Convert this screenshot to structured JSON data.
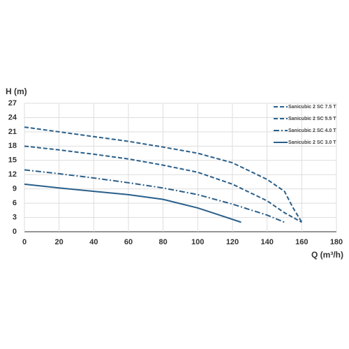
{
  "chart_data": {
    "type": "line",
    "x_label": "Q (m³/h)",
    "y_label": "H (m)",
    "xlim": [
      0,
      180
    ],
    "xticks": [
      0,
      20,
      40,
      60,
      80,
      100,
      120,
      140,
      160,
      180
    ],
    "ylim": [
      0,
      27
    ],
    "yticks": [
      0,
      3,
      6,
      9,
      12,
      15,
      18,
      21,
      24,
      27
    ],
    "grid": true,
    "legend": "upper right",
    "series": [
      {
        "name": "Sanicubic 2 SC 7.5 T",
        "color": "#2a5f8a",
        "style": "dashed",
        "x": [
          0,
          20,
          40,
          60,
          80,
          100,
          120,
          140,
          150,
          155,
          160
        ],
        "values": [
          22,
          21,
          20,
          19,
          17.8,
          16.5,
          14.5,
          11,
          8.5,
          5,
          2
        ]
      },
      {
        "name": "Sanicubic 2 SC 5.5 T",
        "color": "#2a5f8a",
        "style": "dashed",
        "x": [
          0,
          20,
          40,
          60,
          80,
          100,
          120,
          140,
          150,
          160
        ],
        "values": [
          18,
          17.2,
          16.3,
          15.3,
          14,
          12.5,
          10,
          6.5,
          4,
          2
        ]
      },
      {
        "name": "Sanicubic 2 SC 4.0 T",
        "color": "#2a5f8a",
        "style": "dashdot",
        "x": [
          0,
          20,
          40,
          60,
          80,
          100,
          120,
          140,
          150
        ],
        "values": [
          13,
          12.2,
          11.3,
          10.3,
          9.2,
          7.8,
          5.8,
          3.5,
          2
        ]
      },
      {
        "name": "Sanicubic 2 SC 3.0 T",
        "color": "#2a5f8a",
        "style": "solid",
        "x": [
          0,
          20,
          40,
          60,
          80,
          100,
          110,
          125
        ],
        "values": [
          10,
          9.2,
          8.5,
          7.8,
          6.8,
          5,
          3.8,
          2
        ]
      }
    ]
  }
}
